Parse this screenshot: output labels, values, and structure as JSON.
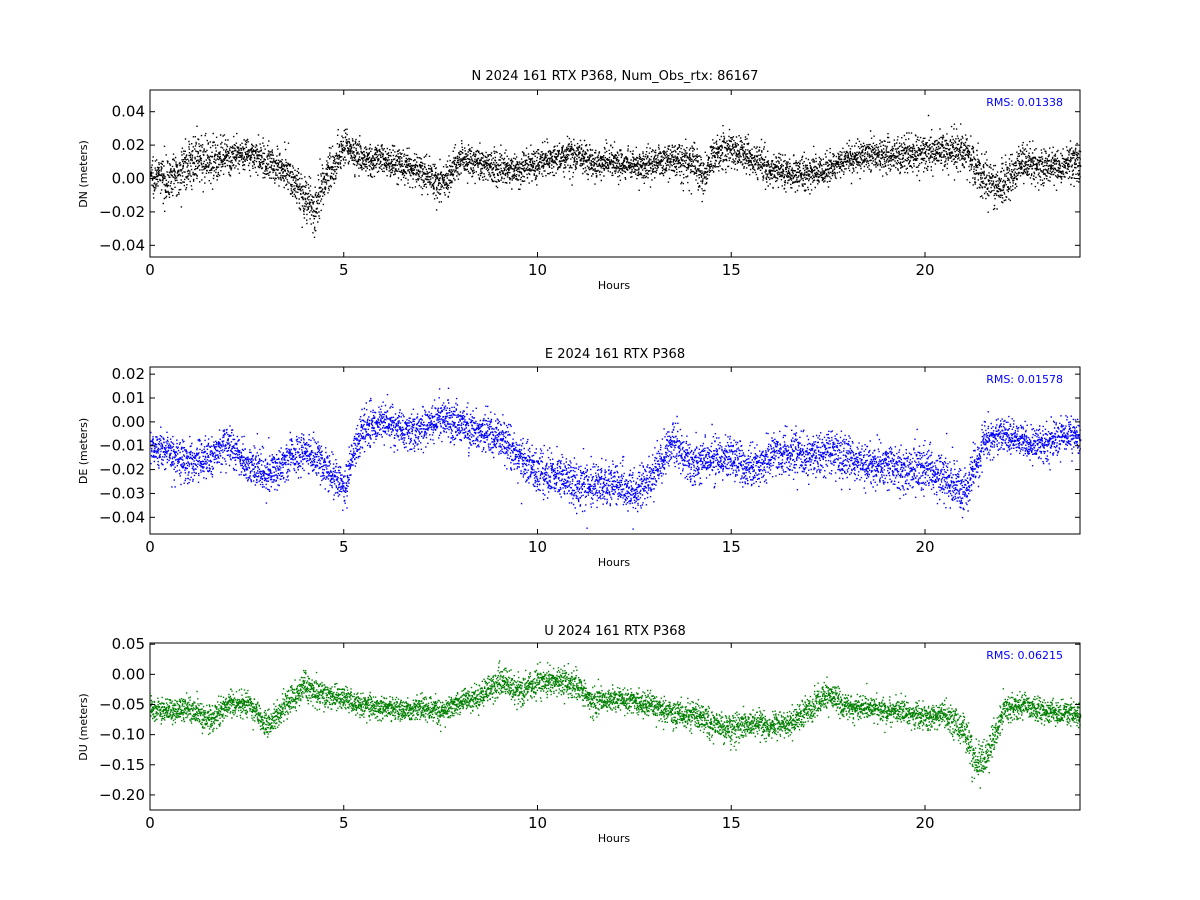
{
  "chart_data": [
    {
      "type": "scatter",
      "title": "N 2024 161 RTX  P368, Num_Obs_rtx: 86167",
      "xlabel": "Hours",
      "ylabel": "DN (meters)",
      "xlim": [
        0,
        24
      ],
      "ylim": [
        -0.047,
        0.053
      ],
      "xticks": [
        0,
        5,
        10,
        15,
        20
      ],
      "xtick_labels": [
        "0",
        "5",
        "10",
        "15",
        "20"
      ],
      "yticks": [
        -0.04,
        -0.02,
        0.0,
        0.02,
        0.04
      ],
      "ytick_labels": [
        "−0.04",
        "−0.02",
        "0.00",
        "0.02",
        "0.04"
      ],
      "grid": false,
      "color": "#000000",
      "rms_label": "RMS:  0.01338",
      "rms_color": "#0000ff",
      "series": [
        {
          "x": [
            0,
            0.5,
            1,
            1.5,
            2,
            2.5,
            3,
            3.5,
            4,
            4.25,
            4.5,
            5,
            5.5,
            6,
            6.5,
            7,
            7.5,
            8,
            8.5,
            9,
            9.5,
            10,
            10.5,
            11,
            11.5,
            12,
            12.5,
            13,
            13.5,
            14,
            14.25,
            14.5,
            15,
            15.5,
            16,
            16.5,
            17,
            17.5,
            18,
            18.5,
            19,
            19.5,
            20,
            20.5,
            21,
            21.5,
            22,
            22.5,
            23,
            23.5,
            24
          ],
          "center": [
            0.003,
            0.0,
            0.01,
            0.012,
            0.012,
            0.016,
            0.01,
            0.006,
            -0.012,
            -0.02,
            0.0,
            0.02,
            0.012,
            0.012,
            0.008,
            0.004,
            -0.003,
            0.012,
            0.01,
            0.006,
            0.005,
            0.01,
            0.012,
            0.014,
            0.01,
            0.01,
            0.008,
            0.01,
            0.012,
            0.01,
            0.0,
            0.014,
            0.018,
            0.012,
            0.006,
            0.004,
            0.003,
            0.006,
            0.012,
            0.015,
            0.014,
            0.015,
            0.016,
            0.018,
            0.018,
            0.0,
            -0.005,
            0.01,
            0.006,
            0.008,
            0.01
          ],
          "spread": [
            0.012,
            0.013,
            0.016,
            0.015,
            0.012,
            0.01,
            0.011,
            0.012,
            0.015,
            0.018,
            0.016,
            0.012,
            0.011,
            0.01,
            0.011,
            0.012,
            0.013,
            0.01,
            0.01,
            0.011,
            0.011,
            0.011,
            0.012,
            0.012,
            0.011,
            0.01,
            0.01,
            0.011,
            0.011,
            0.012,
            0.013,
            0.012,
            0.012,
            0.011,
            0.011,
            0.011,
            0.011,
            0.01,
            0.01,
            0.011,
            0.011,
            0.012,
            0.013,
            0.014,
            0.013,
            0.014,
            0.015,
            0.013,
            0.012,
            0.013,
            0.012
          ]
        }
      ]
    },
    {
      "type": "scatter",
      "title": "E 2024 161 RTX  P368",
      "xlabel": "Hours",
      "ylabel": "DE (meters)",
      "xlim": [
        0,
        24
      ],
      "ylim": [
        -0.047,
        0.023
      ],
      "xticks": [
        0,
        5,
        10,
        15,
        20
      ],
      "xtick_labels": [
        "0",
        "5",
        "10",
        "15",
        "20"
      ],
      "yticks": [
        -0.04,
        -0.03,
        -0.02,
        -0.01,
        0.0,
        0.01,
        0.02
      ],
      "ytick_labels": [
        "−0.04",
        "−0.03",
        "−0.02",
        "−0.01",
        "0.00",
        "0.01",
        "0.02"
      ],
      "grid": false,
      "color": "#0000ff",
      "rms_label": "RMS:  0.01578",
      "rms_color": "#0000ff",
      "series": [
        {
          "x": [
            0,
            0.5,
            1,
            1.5,
            2,
            2.5,
            3,
            3.5,
            4,
            4.5,
            5,
            5.2,
            5.5,
            6,
            6.5,
            7,
            7.5,
            8,
            8.5,
            9,
            9.5,
            10,
            10.5,
            11,
            11.5,
            12,
            12.5,
            13,
            13.5,
            14,
            14.5,
            15,
            15.5,
            16,
            16.5,
            17,
            17.5,
            18,
            18.5,
            19,
            19.5,
            20,
            20.5,
            21,
            21.5,
            22,
            22.5,
            23,
            23.5,
            24
          ],
          "center": [
            -0.01,
            -0.012,
            -0.017,
            -0.015,
            -0.008,
            -0.018,
            -0.022,
            -0.016,
            -0.012,
            -0.018,
            -0.028,
            -0.015,
            -0.002,
            0.0,
            -0.003,
            -0.002,
            0.002,
            0.0,
            -0.004,
            -0.005,
            -0.015,
            -0.02,
            -0.022,
            -0.028,
            -0.025,
            -0.026,
            -0.03,
            -0.02,
            -0.008,
            -0.018,
            -0.015,
            -0.015,
            -0.02,
            -0.014,
            -0.012,
            -0.015,
            -0.012,
            -0.015,
            -0.018,
            -0.018,
            -0.02,
            -0.02,
            -0.022,
            -0.03,
            -0.008,
            -0.005,
            -0.008,
            -0.01,
            -0.005,
            -0.006
          ],
          "spread": [
            0.008,
            0.009,
            0.01,
            0.009,
            0.009,
            0.009,
            0.009,
            0.009,
            0.009,
            0.009,
            0.009,
            0.009,
            0.009,
            0.009,
            0.009,
            0.009,
            0.01,
            0.009,
            0.009,
            0.009,
            0.009,
            0.01,
            0.01,
            0.01,
            0.01,
            0.01,
            0.009,
            0.01,
            0.01,
            0.009,
            0.009,
            0.01,
            0.01,
            0.01,
            0.01,
            0.01,
            0.01,
            0.01,
            0.01,
            0.01,
            0.011,
            0.011,
            0.011,
            0.011,
            0.009,
            0.008,
            0.008,
            0.008,
            0.008,
            0.007
          ]
        }
      ]
    },
    {
      "type": "scatter",
      "title": "U 2024 161 RTX  P368",
      "xlabel": "Hours",
      "ylabel": "DU (meters)",
      "xlim": [
        0,
        24
      ],
      "ylim": [
        -0.225,
        0.052
      ],
      "xticks": [
        0,
        5,
        10,
        15,
        20
      ],
      "xtick_labels": [
        "0",
        "5",
        "10",
        "15",
        "20"
      ],
      "yticks": [
        -0.2,
        -0.15,
        -0.1,
        -0.05,
        0.0,
        0.05
      ],
      "ytick_labels": [
        "−0.20",
        "−0.15",
        "−0.10",
        "−0.05",
        "0.00",
        "0.05"
      ],
      "grid": false,
      "color": "#008000",
      "rms_label": "RMS:  0.06215",
      "rms_color": "#0000ff",
      "series": [
        {
          "x": [
            0,
            0.5,
            1,
            1.5,
            2,
            2.5,
            3,
            3.5,
            4,
            4.5,
            5,
            5.5,
            6,
            6.5,
            7,
            7.5,
            8,
            8.5,
            9,
            9.5,
            10,
            10.5,
            11,
            11.5,
            12,
            12.5,
            13,
            13.5,
            14,
            14.5,
            15,
            15.5,
            16,
            16.5,
            17,
            17.5,
            18,
            18.5,
            19,
            19.5,
            20,
            20.5,
            21,
            21.3,
            21.6,
            22,
            22.5,
            23,
            23.5,
            24
          ],
          "center": [
            -0.055,
            -0.06,
            -0.055,
            -0.075,
            -0.05,
            -0.045,
            -0.085,
            -0.05,
            -0.02,
            -0.035,
            -0.04,
            -0.05,
            -0.055,
            -0.06,
            -0.055,
            -0.06,
            -0.045,
            -0.035,
            -0.01,
            -0.03,
            -0.01,
            -0.01,
            -0.02,
            -0.045,
            -0.04,
            -0.045,
            -0.05,
            -0.065,
            -0.065,
            -0.08,
            -0.09,
            -0.08,
            -0.085,
            -0.08,
            -0.06,
            -0.03,
            -0.055,
            -0.055,
            -0.06,
            -0.06,
            -0.07,
            -0.065,
            -0.09,
            -0.15,
            -0.13,
            -0.06,
            -0.05,
            -0.06,
            -0.065,
            -0.065
          ],
          "spread": [
            0.022,
            0.022,
            0.022,
            0.024,
            0.024,
            0.022,
            0.024,
            0.026,
            0.028,
            0.024,
            0.022,
            0.022,
            0.02,
            0.02,
            0.022,
            0.022,
            0.022,
            0.024,
            0.026,
            0.026,
            0.026,
            0.024,
            0.024,
            0.024,
            0.022,
            0.022,
            0.022,
            0.024,
            0.024,
            0.026,
            0.028,
            0.026,
            0.024,
            0.024,
            0.026,
            0.026,
            0.022,
            0.022,
            0.022,
            0.022,
            0.024,
            0.026,
            0.03,
            0.035,
            0.035,
            0.026,
            0.022,
            0.022,
            0.022,
            0.022
          ]
        }
      ]
    }
  ]
}
